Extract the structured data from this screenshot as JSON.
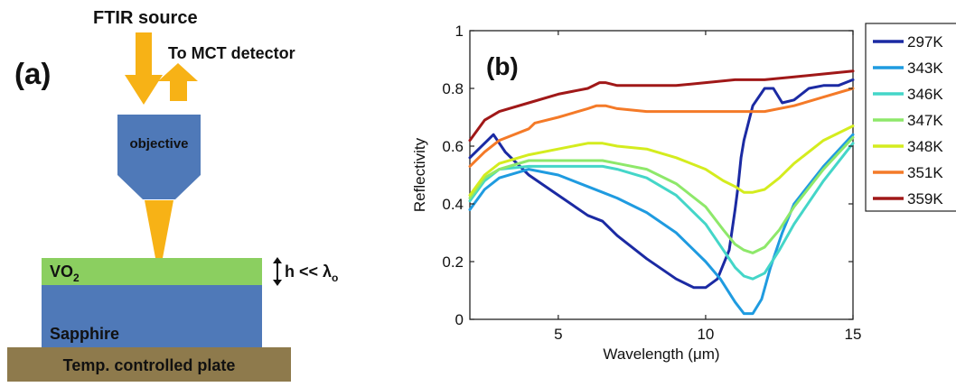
{
  "panel_a": {
    "label": "(a)",
    "source_label": "FTIR source",
    "detector_label": "To MCT detector",
    "objective_label": "objective",
    "film_label": "VO",
    "film_subscript": "2",
    "thickness_label": "h << λ",
    "thickness_subscript": "o",
    "substrate_label": "Sapphire",
    "plate_label": "Temp. controlled plate",
    "colors": {
      "arrow": "#f7b216",
      "objective": "#4f79b8",
      "beam": "#f7b216",
      "film": "#8bcf60",
      "substrate": "#4f79b8",
      "plate": "#8e7a4c"
    }
  },
  "chart_data": {
    "type": "line",
    "panel_label": "(b)",
    "xlabel": "Wavelength (μm)",
    "ylabel": "Reflectivity",
    "xlim": [
      2,
      15
    ],
    "ylim": [
      0,
      1
    ],
    "xticks": [
      5,
      10,
      15
    ],
    "yticks": [
      0,
      0.2,
      0.4,
      0.6,
      0.8,
      1
    ],
    "xtick_labels": [
      "5",
      "10",
      "15"
    ],
    "ytick_labels": [
      "0",
      "0.2",
      "0.4",
      "0.6",
      "0.8",
      "1"
    ],
    "grid": false,
    "legend_position": "right-outside",
    "series": [
      {
        "name": "297K",
        "color": "#1b2aa3",
        "x": [
          2,
          2.5,
          2.8,
          3.2,
          4,
          5,
          6,
          6.5,
          7,
          8,
          9,
          9.6,
          10,
          10.4,
          10.8,
          11,
          11.1,
          11.2,
          11.3,
          11.6,
          12,
          12.3,
          12.6,
          13,
          13.5,
          14,
          14.5,
          15
        ],
        "y": [
          0.56,
          0.61,
          0.64,
          0.58,
          0.5,
          0.43,
          0.36,
          0.34,
          0.29,
          0.21,
          0.14,
          0.11,
          0.11,
          0.14,
          0.24,
          0.38,
          0.46,
          0.56,
          0.62,
          0.74,
          0.8,
          0.8,
          0.75,
          0.76,
          0.8,
          0.81,
          0.81,
          0.83
        ]
      },
      {
        "name": "343K",
        "color": "#1f9be0",
        "x": [
          2,
          2.5,
          3,
          4,
          5,
          6,
          6.5,
          7,
          8,
          9,
          10,
          10.5,
          11,
          11.3,
          11.6,
          11.9,
          12.2,
          12.6,
          13,
          14,
          15
        ],
        "y": [
          0.38,
          0.45,
          0.49,
          0.52,
          0.5,
          0.46,
          0.44,
          0.42,
          0.37,
          0.3,
          0.2,
          0.14,
          0.06,
          0.02,
          0.02,
          0.07,
          0.18,
          0.3,
          0.4,
          0.53,
          0.64
        ]
      },
      {
        "name": "346K",
        "color": "#44d6c8",
        "x": [
          2,
          2.5,
          3,
          4,
          5,
          6,
          6.5,
          7,
          8,
          9,
          10,
          10.6,
          11,
          11.3,
          11.6,
          12,
          12.5,
          13,
          14,
          15
        ],
        "y": [
          0.41,
          0.48,
          0.52,
          0.53,
          0.53,
          0.53,
          0.53,
          0.52,
          0.49,
          0.43,
          0.33,
          0.24,
          0.18,
          0.15,
          0.14,
          0.16,
          0.24,
          0.33,
          0.48,
          0.61
        ]
      },
      {
        "name": "347K",
        "color": "#8ee86a",
        "x": [
          2,
          2.5,
          3,
          4,
          5,
          6,
          6.5,
          7,
          8,
          9,
          10,
          10.6,
          11,
          11.3,
          11.6,
          12,
          12.5,
          13,
          14,
          15
        ],
        "y": [
          0.42,
          0.49,
          0.52,
          0.55,
          0.55,
          0.55,
          0.55,
          0.54,
          0.52,
          0.47,
          0.39,
          0.31,
          0.26,
          0.24,
          0.23,
          0.25,
          0.31,
          0.39,
          0.52,
          0.63
        ]
      },
      {
        "name": "348K",
        "color": "#d4ec1e",
        "x": [
          2,
          2.5,
          3,
          4,
          5,
          6,
          6.5,
          7,
          8,
          9,
          10,
          10.6,
          11,
          11.3,
          11.6,
          12,
          12.5,
          13,
          14,
          15
        ],
        "y": [
          0.43,
          0.5,
          0.54,
          0.57,
          0.59,
          0.61,
          0.61,
          0.6,
          0.59,
          0.56,
          0.52,
          0.48,
          0.46,
          0.44,
          0.44,
          0.45,
          0.49,
          0.54,
          0.62,
          0.67
        ]
      },
      {
        "name": "351K",
        "color": "#f47a28",
        "x": [
          2,
          2.5,
          3,
          4,
          4.2,
          5,
          6,
          6.3,
          6.6,
          7,
          8,
          9,
          10,
          11,
          11.5,
          12,
          13,
          14,
          15
        ],
        "y": [
          0.53,
          0.58,
          0.62,
          0.66,
          0.68,
          0.7,
          0.73,
          0.74,
          0.74,
          0.73,
          0.72,
          0.72,
          0.72,
          0.72,
          0.72,
          0.72,
          0.74,
          0.77,
          0.8
        ]
      },
      {
        "name": "359K",
        "color": "#a01818",
        "x": [
          2,
          2.5,
          3,
          4,
          5,
          6,
          6.4,
          6.6,
          7,
          8,
          9,
          10,
          11,
          12,
          13,
          14,
          15
        ],
        "y": [
          0.62,
          0.69,
          0.72,
          0.75,
          0.78,
          0.8,
          0.82,
          0.82,
          0.81,
          0.81,
          0.81,
          0.82,
          0.83,
          0.83,
          0.84,
          0.85,
          0.86
        ]
      }
    ]
  }
}
